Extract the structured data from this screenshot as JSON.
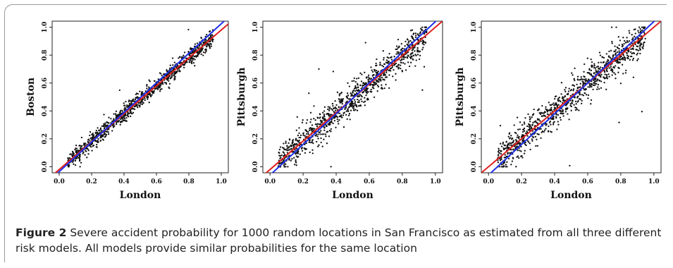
{
  "caption": {
    "label": "Figure 2",
    "text": "Severe accident probability for 1000 random locations in San Francisco as estimated from all three different risk models. All models provide similar probabilities for the same location"
  },
  "line_colors": {
    "red": "#e02020",
    "blue": "#2030e8"
  },
  "chart_data": [
    {
      "type": "scatter",
      "xlabel": "London",
      "ylabel": "Boston",
      "xlim": [
        0.0,
        1.0
      ],
      "ylim": [
        0.0,
        1.0
      ],
      "x_ticks": [
        "0.0",
        "0.2",
        "0.4",
        "0.6",
        "0.8",
        "1.0"
      ],
      "y_ticks": [
        "0.0",
        "0.2",
        "0.4",
        "0.6",
        "0.8",
        "1.0"
      ],
      "grid": false,
      "n_points": 1000,
      "x_range_of_points": [
        0.05,
        0.95
      ],
      "spread": 0.03,
      "lines": [
        {
          "color": "red",
          "intercept": -0.02,
          "slope": 1.0
        },
        {
          "color": "blue",
          "intercept": -0.035,
          "slope": 1.06
        }
      ]
    },
    {
      "type": "scatter",
      "xlabel": "London",
      "ylabel": "Pittsburgh",
      "xlim": [
        0.0,
        1.0
      ],
      "ylim": [
        0.0,
        1.0
      ],
      "x_ticks": [
        "0.0",
        "0.2",
        "0.4",
        "0.6",
        "0.8",
        "1.0"
      ],
      "y_ticks": [
        "0.0",
        "0.2",
        "0.4",
        "0.6",
        "0.8",
        "1.0"
      ],
      "grid": false,
      "n_points": 1000,
      "x_range_of_points": [
        0.05,
        0.95
      ],
      "spread": 0.055,
      "lines": [
        {
          "color": "red",
          "intercept": -0.02,
          "slope": 1.02
        },
        {
          "color": "blue",
          "intercept": -0.06,
          "slope": 1.1
        }
      ]
    },
    {
      "type": "scatter",
      "xlabel": "London",
      "ylabel": "Pittsburgh",
      "xlim": [
        0.0,
        1.0
      ],
      "ylim": [
        0.0,
        1.0
      ],
      "x_ticks": [
        "0.0",
        "0.2",
        "0.4",
        "0.6",
        "0.8",
        "1.0"
      ],
      "y_ticks": [
        "0.0",
        "0.2",
        "0.4",
        "0.6",
        "0.8",
        "1.0"
      ],
      "grid": false,
      "n_points": 1000,
      "x_range_of_points": [
        0.05,
        0.95
      ],
      "spread": 0.06,
      "lines": [
        {
          "color": "red",
          "intercept": 0.0,
          "slope": 1.0
        },
        {
          "color": "blue",
          "intercept": -0.06,
          "slope": 1.1
        }
      ]
    }
  ]
}
